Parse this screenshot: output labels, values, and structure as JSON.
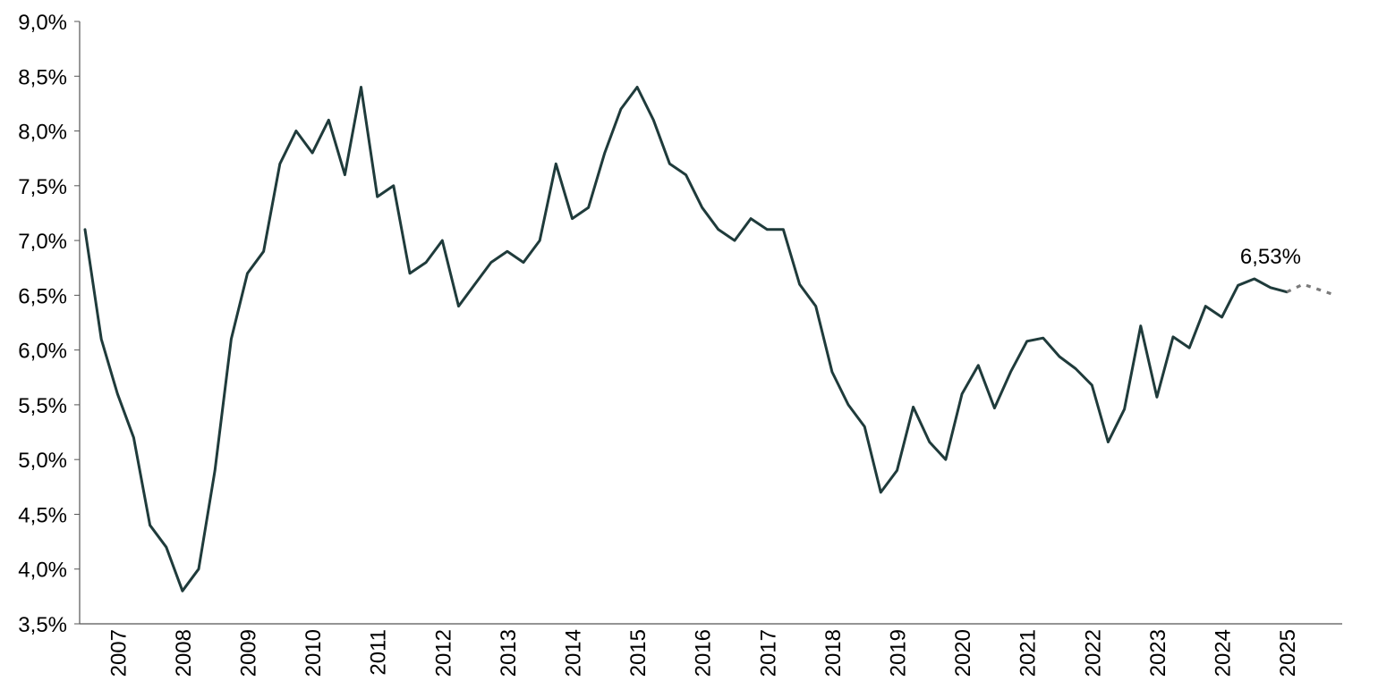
{
  "chart_data": {
    "type": "line",
    "title": "",
    "xlabel": "",
    "ylabel": "",
    "ylim": [
      3.5,
      9.0
    ],
    "xlim": [
      2006.5,
      2025.75
    ],
    "y_ticks": [
      {
        "value": 3.5,
        "label": "3,5%"
      },
      {
        "value": 4.0,
        "label": "4,0%"
      },
      {
        "value": 4.5,
        "label": "4,5%"
      },
      {
        "value": 5.0,
        "label": "5,0%"
      },
      {
        "value": 5.5,
        "label": "5,5%"
      },
      {
        "value": 6.0,
        "label": "6,0%"
      },
      {
        "value": 6.5,
        "label": "6,5%"
      },
      {
        "value": 7.0,
        "label": "7,0%"
      },
      {
        "value": 7.5,
        "label": "7,5%"
      },
      {
        "value": 8.0,
        "label": "8,0%"
      },
      {
        "value": 8.5,
        "label": "8,5%"
      },
      {
        "value": 9.0,
        "label": "9,0%"
      }
    ],
    "x_ticks": [
      "2007",
      "2008",
      "2009",
      "2010",
      "2011",
      "2012",
      "2013",
      "2014",
      "2015",
      "2016",
      "2017",
      "2018",
      "2019",
      "2020",
      "2021",
      "2022",
      "2023",
      "2024",
      "2025"
    ],
    "grid": false,
    "legend": "none",
    "series": [
      {
        "style": "solid",
        "color": "#1f3b3b",
        "x": [
          2006.5,
          2006.75,
          2007.0,
          2007.25,
          2007.5,
          2007.75,
          2008.0,
          2008.25,
          2008.5,
          2008.75,
          2009.0,
          2009.25,
          2009.5,
          2009.75,
          2010.0,
          2010.25,
          2010.5,
          2010.75,
          2011.0,
          2011.25,
          2011.5,
          2011.75,
          2012.0,
          2012.25,
          2012.5,
          2012.75,
          2013.0,
          2013.25,
          2013.5,
          2013.75,
          2014.0,
          2014.25,
          2014.5,
          2014.75,
          2015.0,
          2015.25,
          2015.5,
          2015.75,
          2016.0,
          2016.25,
          2016.5,
          2016.75,
          2017.0,
          2017.25,
          2017.5,
          2017.75,
          2018.0,
          2018.25,
          2018.5,
          2018.75,
          2019.0,
          2019.25,
          2019.5,
          2019.75,
          2020.0,
          2020.25,
          2020.5,
          2020.75,
          2021.0,
          2021.25,
          2021.5,
          2021.75,
          2022.0,
          2022.25,
          2022.5,
          2022.75,
          2023.0,
          2023.25,
          2023.5,
          2023.75,
          2024.0,
          2024.25,
          2024.5,
          2024.75,
          2025.0
        ],
        "values": [
          7.1,
          6.1,
          5.6,
          5.2,
          4.4,
          4.2,
          3.8,
          4.0,
          4.9,
          6.1,
          6.7,
          6.9,
          7.7,
          8.0,
          7.8,
          8.1,
          7.6,
          8.4,
          7.4,
          7.5,
          6.7,
          6.8,
          7.0,
          6.4,
          6.6,
          6.8,
          6.9,
          6.8,
          7.0,
          7.7,
          7.2,
          7.3,
          7.8,
          8.2,
          8.4,
          8.1,
          7.7,
          7.6,
          7.3,
          7.1,
          7.0,
          7.2,
          7.1,
          7.1,
          6.6,
          6.4,
          5.8,
          5.5,
          5.3,
          4.7,
          4.9,
          5.48,
          5.16,
          5.0,
          5.6,
          5.86,
          5.47,
          5.8,
          6.08,
          6.11,
          5.94,
          5.83,
          5.68,
          5.16,
          5.46,
          6.22,
          5.57,
          6.12,
          6.02,
          6.4,
          6.3,
          6.59,
          6.65,
          6.57,
          6.53
        ]
      },
      {
        "style": "dotted",
        "color": "#7a7a7a",
        "x": [
          2025.0,
          2025.25,
          2025.5,
          2025.75
        ],
        "values": [
          6.53,
          6.6,
          6.55,
          6.5
        ]
      }
    ],
    "annotations": [
      {
        "x": 2024.75,
        "y": 6.53,
        "text": "6,53%"
      }
    ]
  }
}
